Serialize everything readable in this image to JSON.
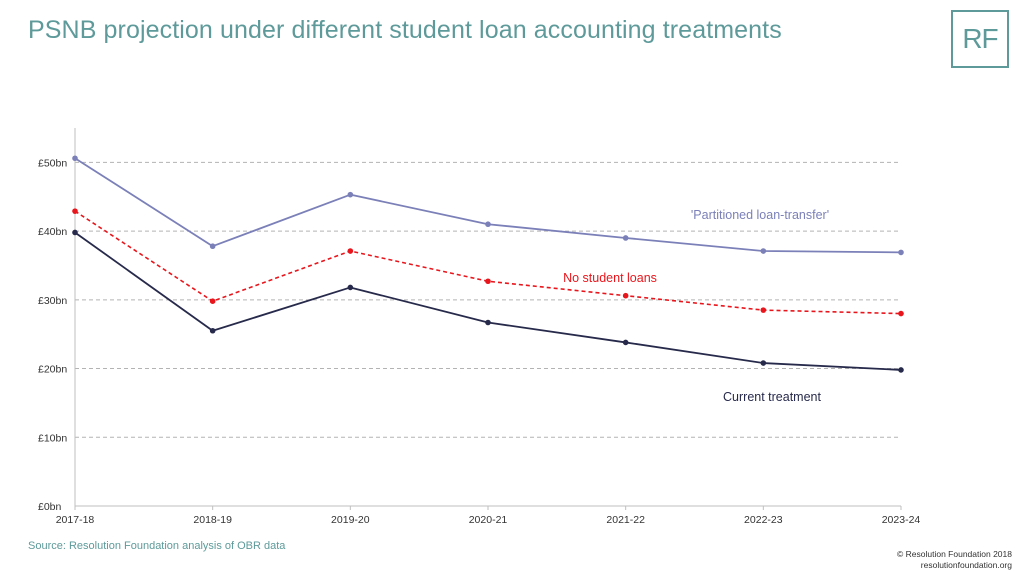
{
  "header": {
    "title": "PSNB projection under different student loan accounting treatments",
    "logo_text": "RF"
  },
  "footer": {
    "source": "Source: Resolution Foundation analysis of OBR data",
    "copyright": "© Resolution Foundation 2018",
    "website": "resolutionfoundation.org"
  },
  "colors": {
    "accent": "#5e9a9a",
    "gridline": "#b3b3b3",
    "axis": "#bfbfbf"
  },
  "chart_data": {
    "type": "line",
    "categories": [
      "2017-18",
      "2018-19",
      "2019-20",
      "2020-21",
      "2021-22",
      "2022-23",
      "2023-24"
    ],
    "ylim": [
      0,
      55
    ],
    "yticks": [
      {
        "value": 0,
        "label": "£0bn"
      },
      {
        "value": 10,
        "label": "£10bn"
      },
      {
        "value": 20,
        "label": "£20bn"
      },
      {
        "value": 30,
        "label": "£30bn"
      },
      {
        "value": 40,
        "label": "£40bn"
      },
      {
        "value": 50,
        "label": "£50bn"
      }
    ],
    "grid": true,
    "series": [
      {
        "name": "'Partitioned loan-transfer'",
        "color": "#7b80b8",
        "dashed": false,
        "values": [
          50.6,
          37.8,
          45.3,
          41.0,
          39.0,
          37.1,
          36.9
        ]
      },
      {
        "name": "No student loans",
        "color": "#e8161c",
        "dashed": true,
        "values": [
          42.9,
          29.8,
          37.1,
          32.7,
          30.6,
          28.5,
          28.0
        ]
      },
      {
        "name": "Current treatment",
        "color": "#272a4b",
        "dashed": false,
        "values": [
          39.8,
          25.5,
          31.8,
          26.7,
          23.8,
          20.8,
          19.8
        ]
      }
    ]
  }
}
